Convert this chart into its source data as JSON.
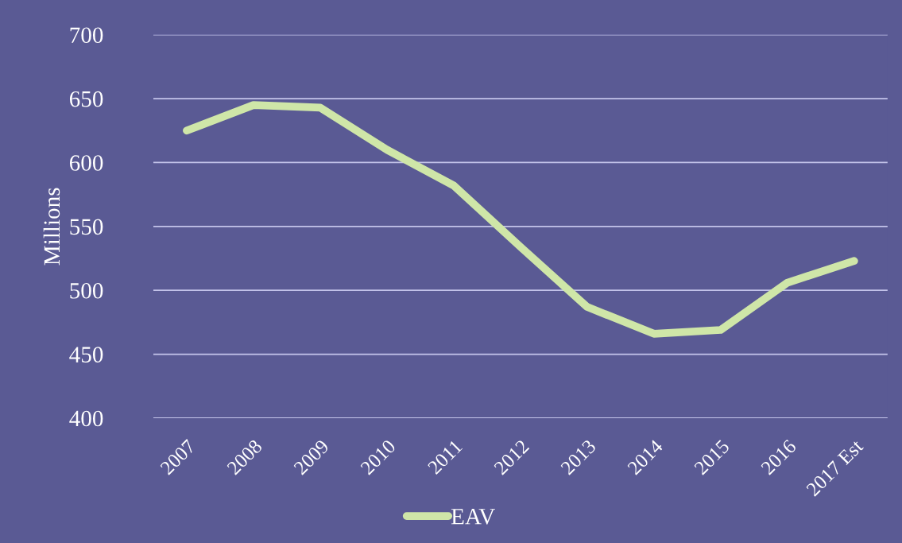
{
  "chart_data": {
    "type": "line",
    "ylabel": "Millions",
    "categories": [
      "2007",
      "2008",
      "2009",
      "2010",
      "2011",
      "2012",
      "2013",
      "2014",
      "2015",
      "2016",
      "2017 Est"
    ],
    "series": [
      {
        "name": "EAV",
        "color": "#cfe6a8",
        "values": [
          625,
          645,
          643,
          610,
          582,
          534,
          487,
          466,
          469,
          506,
          523
        ]
      }
    ],
    "ylim": [
      400,
      700
    ],
    "yticks": [
      400,
      450,
      500,
      550,
      600,
      650,
      700
    ],
    "grid": "y",
    "legend": "bottom",
    "marker": "none",
    "line_style": "solid"
  }
}
